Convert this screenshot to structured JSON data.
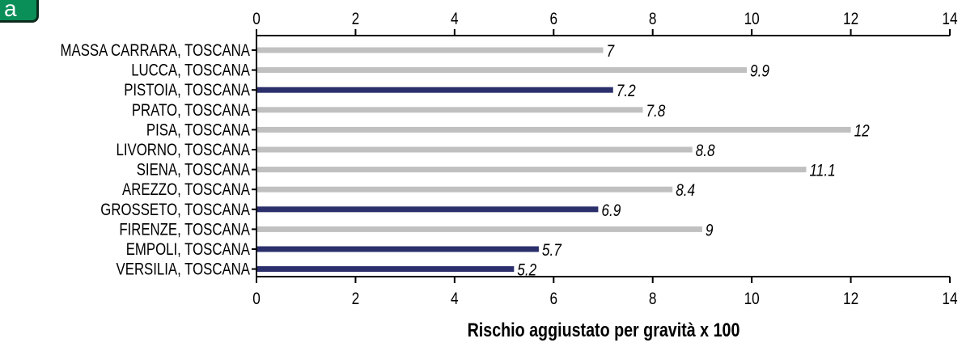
{
  "badge_label": "a",
  "colors": {
    "highlight": "#2b2f6b",
    "default": "#c0c0c0",
    "axis": "#000000",
    "text": "#000000"
  },
  "chart_data": {
    "type": "bar",
    "orientation": "horizontal",
    "categories": [
      "MASSA CARRARA, TOSCANA",
      "LUCCA, TOSCANA",
      "PISTOIA, TOSCANA",
      "PRATO, TOSCANA",
      "PISA, TOSCANA",
      "LIVORNO, TOSCANA",
      "SIENA, TOSCANA",
      "AREZZO, TOSCANA",
      "GROSSETO, TOSCANA",
      "FIRENZE, TOSCANA",
      "EMPOLI, TOSCANA",
      "VERSILIA, TOSCANA"
    ],
    "values": [
      7,
      9.9,
      7.2,
      7.8,
      12,
      8.8,
      11.1,
      8.4,
      6.9,
      9,
      5.7,
      5.2
    ],
    "value_labels": [
      "7",
      "9.9",
      "7.2",
      "7.8",
      "12",
      "8.8",
      "11.1",
      "8.4",
      "6.9",
      "9",
      "5.7",
      "5.2"
    ],
    "highlighted": [
      false,
      false,
      true,
      false,
      false,
      false,
      false,
      false,
      true,
      false,
      true,
      true
    ],
    "xlabel": "Rischio aggiustato per gravità x 100",
    "xlim": [
      0,
      14
    ],
    "xticks": [
      "0",
      "2",
      "4",
      "6",
      "8",
      "10",
      "12",
      "14"
    ],
    "tick_positions": "top-and-bottom",
    "grid": false,
    "legend": "none"
  }
}
